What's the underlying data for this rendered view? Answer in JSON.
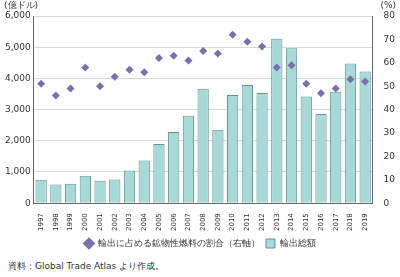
{
  "chart_data": {
    "type": "bar",
    "y_label": "(億ドル)",
    "y2_label": "(%)",
    "source": "資料：Global Trade Atlas より作成。",
    "categories": [
      "1997",
      "1998",
      "1999",
      "2000",
      "2001",
      "2002",
      "2003",
      "2004",
      "2005",
      "2006",
      "2007",
      "2008",
      "2009",
      "2010",
      "2011",
      "2012",
      "2013",
      "2014",
      "2015",
      "2016",
      "2017",
      "2018",
      "2019"
    ],
    "series": [
      {
        "name": "輸出総額",
        "type": "bar",
        "color": "#a9d9d6",
        "values": [
          750,
          600,
          620,
          880,
          720,
          760,
          1050,
          1370,
          1900,
          2280,
          2800,
          3670,
          2350,
          3470,
          3790,
          3530,
          5270,
          4970,
          3420,
          2860,
          3570,
          4480,
          4220
        ]
      },
      {
        "name": "輸出に占める鉱物性燃料の割合（右軸）",
        "type": "line",
        "line_style": "none",
        "marker": "diamond",
        "axis": "y2",
        "color": "#7a6fae",
        "values": [
          51,
          46,
          49,
          58,
          50,
          54,
          57,
          56,
          62,
          63,
          61,
          65,
          64,
          72,
          69,
          67,
          58,
          59,
          51,
          47,
          49,
          53,
          52
        ]
      }
    ],
    "ylim": [
      0,
      6000
    ],
    "yticks": [
      0,
      {
        "value": 1000,
        "label": "1,000"
      },
      {
        "value": 2000,
        "label": "2,000"
      },
      {
        "value": 3000,
        "label": "3,000"
      },
      {
        "value": 4000,
        "label": "4,000"
      },
      {
        "value": 5000,
        "label": "5,000"
      },
      {
        "value": 6000,
        "label": "6,000"
      }
    ],
    "y2lim": [
      0,
      80
    ],
    "y2ticks": [
      0,
      10,
      20,
      30,
      40,
      50,
      60,
      70,
      80
    ],
    "grid": true,
    "legend": "bottom"
  }
}
